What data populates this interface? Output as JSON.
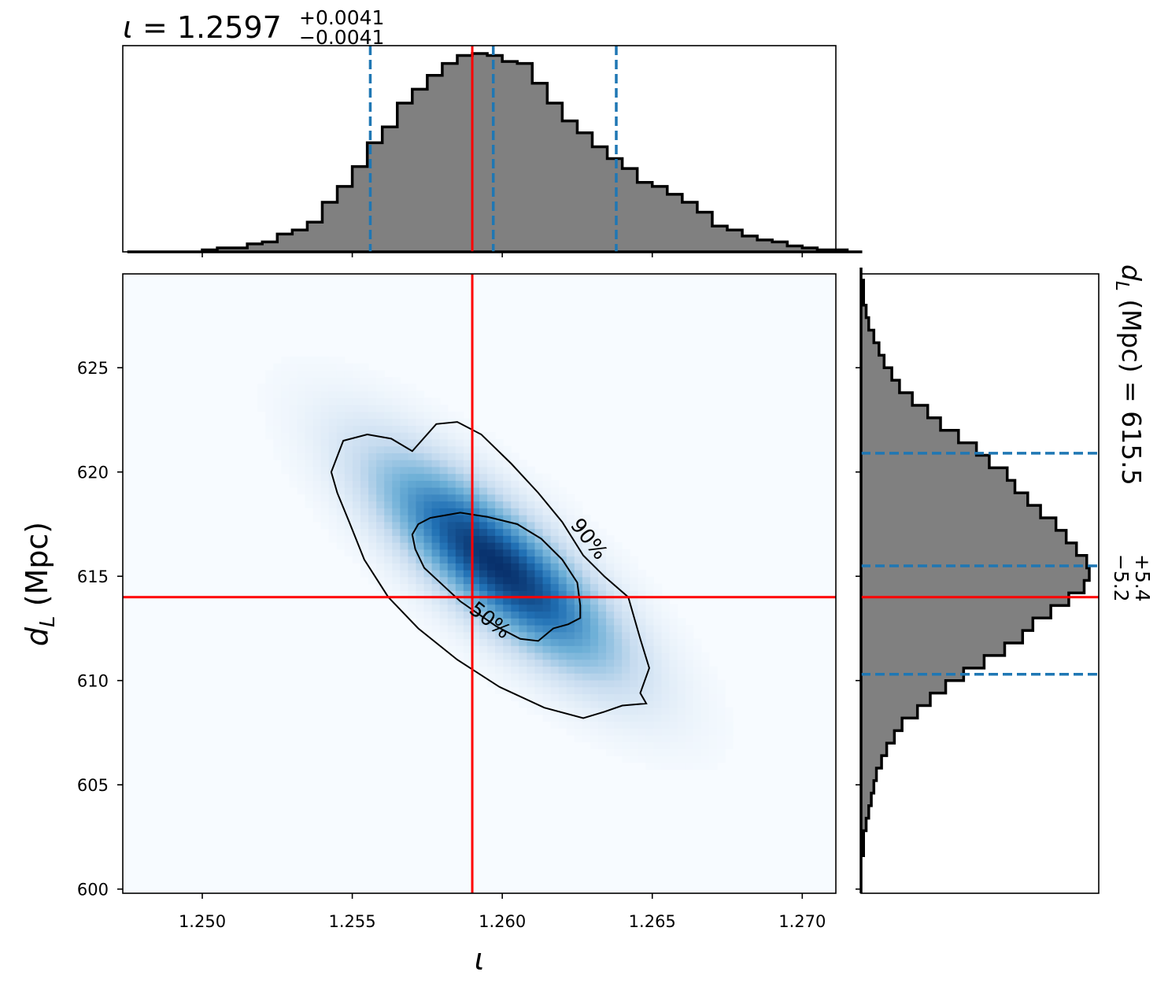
{
  "chart_data": [
    {
      "type": "histogram",
      "panel": "top-marginal",
      "title": {
        "symbol": "ι",
        "equals": " = ",
        "median": "1.2597",
        "plus": "+0.0041",
        "minus": "−0.0041"
      },
      "xlim": [
        1.24735,
        1.27112
      ],
      "x_ticks": [
        1.25,
        1.255,
        1.26,
        1.265,
        1.27
      ],
      "bin_edges_start": 1.2475,
      "bin_width": 0.0005,
      "counts": [
        0,
        0,
        0,
        0,
        0,
        1,
        2,
        2,
        4,
        5,
        9,
        11,
        15,
        25,
        33,
        43,
        55,
        63,
        75,
        82,
        89,
        95,
        99,
        100,
        99,
        96,
        95,
        85,
        75,
        66,
        60,
        53,
        47,
        42,
        35,
        33,
        29,
        25,
        20,
        13,
        11,
        8,
        6,
        5,
        3,
        2,
        1,
        1,
        0
      ],
      "quantile_lines": [
        1.2556,
        1.2597,
        1.2638
      ],
      "truth_line": 1.259
    },
    {
      "type": "heatmap",
      "panel": "joint",
      "xlabel": "ι",
      "ylabel": {
        "main": "d",
        "sub": "L",
        "unit": " (Mpc)"
      },
      "xlim": [
        1.24735,
        1.27112
      ],
      "ylim": [
        599.8,
        629.5
      ],
      "x_ticks": [
        1.25,
        1.255,
        1.26,
        1.265,
        1.27
      ],
      "x_tick_labels": [
        "1.250",
        "1.255",
        "1.260",
        "1.265",
        "1.270"
      ],
      "y_ticks": [
        600,
        605,
        610,
        615,
        620,
        625
      ],
      "y_tick_labels": [
        "600",
        "605",
        "610",
        "615",
        "620",
        "625"
      ],
      "density": {
        "mean_x": 1.2598,
        "mean_y": 615.6,
        "sigma_x": 0.0026,
        "sigma_y": 3.3,
        "rho": -0.8
      },
      "contours": [
        {
          "label": "50%",
          "points": [
            [
              1.258,
              617.9
            ],
            [
              1.2586,
              618.05
            ],
            [
              1.2595,
              617.85
            ],
            [
              1.2605,
              617.5
            ],
            [
              1.2613,
              616.8
            ],
            [
              1.262,
              615.8
            ],
            [
              1.2625,
              614.7
            ],
            [
              1.2626,
              613.6
            ],
            [
              1.2626,
              613.0
            ],
            [
              1.2622,
              612.7
            ],
            [
              1.2617,
              612.5
            ],
            [
              1.2612,
              611.9
            ],
            [
              1.2606,
              612.0
            ],
            [
              1.2598,
              612.6
            ],
            [
              1.2592,
              613.2
            ],
            [
              1.2586,
              613.8
            ],
            [
              1.258,
              614.6
            ],
            [
              1.2574,
              615.4
            ],
            [
              1.2571,
              616.3
            ],
            [
              1.257,
              617.0
            ],
            [
              1.2572,
              617.5
            ],
            [
              1.2576,
              617.8
            ]
          ],
          "label_at": [
            1.2596,
            612.9
          ],
          "label_angle": 38
        },
        {
          "label": "90%",
          "points": [
            [
              1.257,
              621.0
            ],
            [
              1.2578,
              622.3
            ],
            [
              1.2585,
              622.4
            ],
            [
              1.2593,
              621.8
            ],
            [
              1.2603,
              620.4
            ],
            [
              1.2612,
              619.0
            ],
            [
              1.262,
              617.6
            ],
            [
              1.2627,
              616.0
            ],
            [
              1.2634,
              615.0
            ],
            [
              1.2642,
              614.0
            ],
            [
              1.2646,
              612.0
            ],
            [
              1.2649,
              610.6
            ],
            [
              1.2646,
              609.4
            ],
            [
              1.2648,
              608.9
            ],
            [
              1.264,
              608.8
            ],
            [
              1.2634,
              608.5
            ],
            [
              1.2627,
              608.2
            ],
            [
              1.2614,
              608.7
            ],
            [
              1.2599,
              609.7
            ],
            [
              1.2585,
              611.0
            ],
            [
              1.2572,
              612.5
            ],
            [
              1.2562,
              614.0
            ],
            [
              1.2554,
              615.8
            ],
            [
              1.2549,
              617.6
            ],
            [
              1.2545,
              619.0
            ],
            [
              1.2543,
              620.0
            ],
            [
              1.2547,
              621.5
            ],
            [
              1.2555,
              621.8
            ],
            [
              1.2563,
              621.6
            ]
          ],
          "label_at": [
            1.2629,
            616.8
          ],
          "label_angle": 52
        }
      ],
      "truth_x": 1.259,
      "truth_y": 614.0
    },
    {
      "type": "histogram",
      "panel": "right-marginal",
      "orientation": "horizontal",
      "side_label": {
        "main": "d",
        "sub": "L",
        "text": " (Mpc) = ",
        "median": "615.5",
        "plus": "+5.4",
        "minus": "−5.2"
      },
      "ylim": [
        599.8,
        629.5
      ],
      "bin_edges_start": 599.8,
      "bin_width": 0.6,
      "counts": [
        0,
        0,
        0,
        1,
        1,
        2,
        3,
        4,
        5,
        6,
        8,
        10,
        13,
        16,
        22,
        27,
        33,
        40,
        48,
        56,
        63,
        67,
        74,
        81,
        87,
        89,
        88,
        84,
        80,
        76,
        70,
        65,
        60,
        57,
        50,
        45,
        38,
        31,
        26,
        20,
        15,
        12,
        9,
        7,
        5,
        3,
        2,
        1,
        1,
        0
      ],
      "quantile_lines": [
        610.3,
        615.5,
        620.9
      ],
      "truth_line": 614.0
    }
  ],
  "colors": {
    "hist_fill": "#808080",
    "hist_edge": "#000000",
    "quantile": "#1f77b4",
    "truth": "#ff0000",
    "contour": "#000000",
    "cmap_low": "#f7fbff",
    "cmap_high": "#08306b"
  }
}
